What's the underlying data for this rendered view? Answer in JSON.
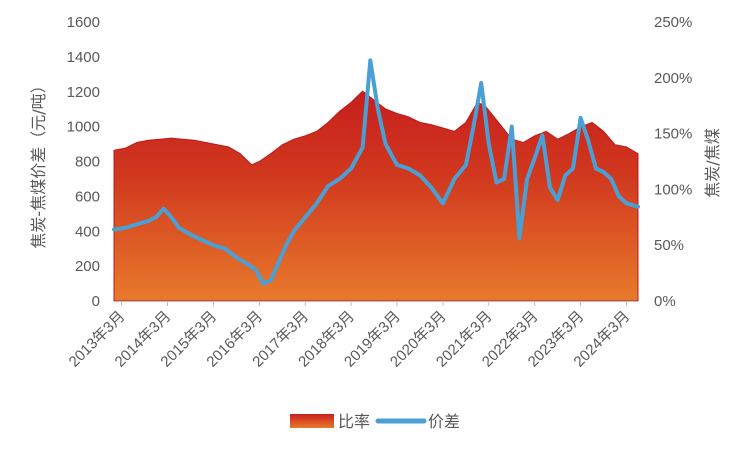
{
  "chart_data": {
    "type": "area",
    "y_left": {
      "label": "焦炭-焦煤价差（元/吨）",
      "ylim": [
        0,
        1600
      ],
      "ticks": [
        "0",
        "200",
        "400",
        "600",
        "800",
        "1000",
        "1200",
        "1400",
        "1600"
      ]
    },
    "y_right": {
      "label": "焦炭/焦煤",
      "ylim": [
        0,
        2.5
      ],
      "ticks": [
        "0%",
        "50%",
        "100%",
        "150%",
        "200%",
        "250%"
      ]
    },
    "x_range": [
      "2013-01",
      "2024-06"
    ],
    "x_ticks": [
      "2013年3月",
      "2014年3月",
      "2015年3月",
      "2016年3月",
      "2017年3月",
      "2018年3月",
      "2019年3月",
      "2020年3月",
      "2021年3月",
      "2022年3月",
      "2023年3月",
      "2024年3月"
    ],
    "legend": {
      "placement": "bottom",
      "items": [
        "比率",
        "价差"
      ]
    },
    "grid": false,
    "series": [
      {
        "name": "比率",
        "type": "area",
        "axis": "right",
        "color_top": "#c81e1e",
        "color_bottom": "#e87a2c",
        "points": [
          [
            "2013-01",
            1.35
          ],
          [
            "2013-04",
            1.37
          ],
          [
            "2013-07",
            1.42
          ],
          [
            "2013-10",
            1.44
          ],
          [
            "2014-01",
            1.45
          ],
          [
            "2014-04",
            1.46
          ],
          [
            "2014-07",
            1.45
          ],
          [
            "2014-10",
            1.44
          ],
          [
            "2015-01",
            1.42
          ],
          [
            "2015-04",
            1.4
          ],
          [
            "2015-07",
            1.38
          ],
          [
            "2015-10",
            1.32
          ],
          [
            "2016-01",
            1.22
          ],
          [
            "2016-03",
            1.25
          ],
          [
            "2016-06",
            1.32
          ],
          [
            "2016-09",
            1.4
          ],
          [
            "2016-12",
            1.45
          ],
          [
            "2017-03",
            1.48
          ],
          [
            "2017-06",
            1.52
          ],
          [
            "2017-09",
            1.6
          ],
          [
            "2017-12",
            1.7
          ],
          [
            "2018-03",
            1.78
          ],
          [
            "2018-06",
            1.88
          ],
          [
            "2018-09",
            1.8
          ],
          [
            "2018-12",
            1.72
          ],
          [
            "2019-03",
            1.68
          ],
          [
            "2019-06",
            1.65
          ],
          [
            "2019-09",
            1.6
          ],
          [
            "2019-12",
            1.58
          ],
          [
            "2020-03",
            1.55
          ],
          [
            "2020-06",
            1.52
          ],
          [
            "2020-09",
            1.6
          ],
          [
            "2020-12",
            1.78
          ],
          [
            "2021-02",
            1.75
          ],
          [
            "2021-06",
            1.58
          ],
          [
            "2021-09",
            1.45
          ],
          [
            "2021-12",
            1.42
          ],
          [
            "2022-03",
            1.48
          ],
          [
            "2022-06",
            1.52
          ],
          [
            "2022-09",
            1.45
          ],
          [
            "2022-12",
            1.5
          ],
          [
            "2023-03",
            1.56
          ],
          [
            "2023-06",
            1.6
          ],
          [
            "2023-09",
            1.52
          ],
          [
            "2023-12",
            1.4
          ],
          [
            "2024-03",
            1.38
          ],
          [
            "2024-06",
            1.32
          ]
        ]
      },
      {
        "name": "价差",
        "type": "line",
        "axis": "left",
        "color": "#4a9fd4",
        "points": [
          [
            "2013-01",
            410
          ],
          [
            "2013-04",
            420
          ],
          [
            "2013-07",
            440
          ],
          [
            "2013-10",
            460
          ],
          [
            "2013-12",
            480
          ],
          [
            "2014-02",
            530
          ],
          [
            "2014-04",
            480
          ],
          [
            "2014-06",
            420
          ],
          [
            "2014-09",
            380
          ],
          [
            "2014-12",
            350
          ],
          [
            "2015-03",
            320
          ],
          [
            "2015-06",
            300
          ],
          [
            "2015-09",
            250
          ],
          [
            "2015-12",
            210
          ],
          [
            "2016-02",
            180
          ],
          [
            "2016-04",
            100
          ],
          [
            "2016-06",
            120
          ],
          [
            "2016-08",
            220
          ],
          [
            "2016-10",
            320
          ],
          [
            "2016-12",
            400
          ],
          [
            "2017-03",
            480
          ],
          [
            "2017-06",
            560
          ],
          [
            "2017-09",
            660
          ],
          [
            "2017-12",
            700
          ],
          [
            "2018-03",
            760
          ],
          [
            "2018-06",
            880
          ],
          [
            "2018-08",
            1380
          ],
          [
            "2018-10",
            1100
          ],
          [
            "2018-12",
            900
          ],
          [
            "2019-03",
            780
          ],
          [
            "2019-06",
            760
          ],
          [
            "2019-09",
            720
          ],
          [
            "2019-12",
            650
          ],
          [
            "2020-03",
            560
          ],
          [
            "2020-06",
            700
          ],
          [
            "2020-09",
            780
          ],
          [
            "2020-11",
            1000
          ],
          [
            "2021-01",
            1250
          ],
          [
            "2021-03",
            900
          ],
          [
            "2021-05",
            680
          ],
          [
            "2021-07",
            700
          ],
          [
            "2021-09",
            1000
          ],
          [
            "2021-11",
            360
          ],
          [
            "2022-01",
            700
          ],
          [
            "2022-03",
            820
          ],
          [
            "2022-05",
            950
          ],
          [
            "2022-07",
            650
          ],
          [
            "2022-09",
            580
          ],
          [
            "2022-11",
            720
          ],
          [
            "2023-01",
            760
          ],
          [
            "2023-03",
            1050
          ],
          [
            "2023-05",
            920
          ],
          [
            "2023-07",
            760
          ],
          [
            "2023-09",
            740
          ],
          [
            "2023-11",
            700
          ],
          [
            "2024-01",
            600
          ],
          [
            "2024-03",
            560
          ],
          [
            "2024-06",
            540
          ]
        ]
      }
    ]
  }
}
